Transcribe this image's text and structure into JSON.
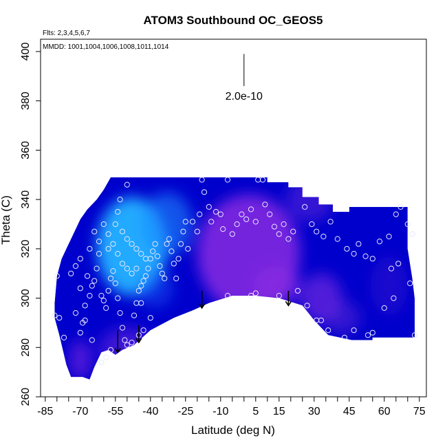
{
  "chart_data": {
    "type": "scatter",
    "title": "ATOM3 Southbound OC_GEOS5",
    "subtitle_flights": "Flts: 2,3,4,5,6,7",
    "subtitle_dates": "MMDD: 1001,1004,1006,1008,1011,1014",
    "xlabel": "Latitude (deg N)",
    "ylabel": "Theta (C)",
    "scale_label": "2.0e-10",
    "xlim": [
      -87,
      78
    ],
    "ylim": [
      260,
      405
    ],
    "xticks": [
      -85,
      -70,
      -55,
      -40,
      -25,
      -10,
      5,
      15,
      30,
      45,
      60,
      75
    ],
    "yticks": [
      260,
      280,
      300,
      320,
      340,
      360,
      380,
      400
    ],
    "colors": {
      "background": "#ffffff",
      "low": "#0000cc",
      "mid_purple": "#8a2be2",
      "high_cyan": "#1aa6ff",
      "marker": "#e8e8ff",
      "arrow": "#000000"
    },
    "field": {
      "boundary": [
        [
          -80,
          309
        ],
        [
          -78,
          316
        ],
        [
          -76,
          320
        ],
        [
          -74,
          324
        ],
        [
          -72,
          328
        ],
        [
          -70,
          332
        ],
        [
          -67,
          336
        ],
        [
          -63,
          340
        ],
        [
          -60,
          344
        ],
        [
          -57,
          349
        ],
        [
          10,
          349
        ],
        [
          10,
          347
        ],
        [
          19,
          347
        ],
        [
          19,
          345
        ],
        [
          25,
          345
        ],
        [
          25,
          341
        ],
        [
          32,
          341
        ],
        [
          32,
          338
        ],
        [
          38,
          338
        ],
        [
          38,
          335
        ],
        [
          45,
          335
        ],
        [
          45,
          337
        ],
        [
          55,
          337
        ],
        [
          55,
          337
        ],
        [
          70,
          337
        ],
        [
          70,
          320
        ],
        [
          72,
          308
        ],
        [
          73,
          300
        ],
        [
          73,
          284
        ],
        [
          55,
          284
        ],
        [
          55,
          283
        ],
        [
          46,
          283
        ],
        [
          36,
          285
        ],
        [
          30,
          291
        ],
        [
          25,
          297
        ],
        [
          15,
          300
        ],
        [
          5,
          301
        ],
        [
          -5,
          301
        ],
        [
          -15,
          298
        ],
        [
          -22,
          295
        ],
        [
          -30,
          292
        ],
        [
          -40,
          287
        ],
        [
          -47,
          281
        ],
        [
          -52,
          279
        ],
        [
          -55,
          277
        ],
        [
          -58,
          279
        ],
        [
          -61,
          278
        ],
        [
          -64,
          272
        ],
        [
          -66,
          267
        ],
        [
          -69,
          268
        ],
        [
          -74,
          268
        ],
        [
          -76,
          273
        ],
        [
          -79,
          285
        ],
        [
          -81,
          292
        ],
        [
          -81,
          298
        ]
      ],
      "hotspots": [
        {
          "lat": -48,
          "theta": 321,
          "value": 1.0,
          "color": "#22aaff",
          "rx_deg": 15,
          "ry_theta": 20
        },
        {
          "lat": -33,
          "theta": 330,
          "value": 0.6,
          "color": "#1a8cff",
          "rx_deg": 11,
          "ry_theta": 13
        },
        {
          "lat": -38,
          "theta": 304,
          "value": 0.4,
          "color": "#1a66ff",
          "rx_deg": 8,
          "ry_theta": 8
        },
        {
          "lat": 2,
          "theta": 318,
          "value": 0.85,
          "color": "#8a2be2",
          "rx_deg": 22,
          "ry_theta": 24
        },
        {
          "lat": 14,
          "theta": 305,
          "value": 0.7,
          "color": "#8a2be2",
          "rx_deg": 10,
          "ry_theta": 8
        },
        {
          "lat": 33,
          "theta": 300,
          "value": 0.65,
          "color": "#7a2be0",
          "rx_deg": 9,
          "ry_theta": 10
        },
        {
          "lat": 28,
          "theta": 340,
          "value": 0.5,
          "color": "#6a2bdc",
          "rx_deg": 10,
          "ry_theta": 9
        },
        {
          "lat": 42,
          "theta": 292,
          "value": 0.45,
          "color": "#6a2ad8",
          "rx_deg": 8,
          "ry_theta": 7
        },
        {
          "lat": -50,
          "theta": 280,
          "value": 0.5,
          "color": "#7a2be0",
          "rx_deg": 12,
          "ry_theta": 8
        },
        {
          "lat": -70,
          "theta": 275,
          "value": 0.55,
          "color": "#8a2be2",
          "rx_deg": 5,
          "ry_theta": 8
        },
        {
          "lat": 62,
          "theta": 305,
          "value": 0.35,
          "color": "#4a20d0",
          "rx_deg": 8,
          "ry_theta": 12
        }
      ]
    },
    "points": [
      [
        -80,
        309
      ],
      [
        -81,
        293
      ],
      [
        -79,
        292
      ],
      [
        -77,
        284
      ],
      [
        -74,
        310
      ],
      [
        -72,
        294
      ],
      [
        -70,
        304
      ],
      [
        -69,
        290
      ],
      [
        -68,
        297
      ],
      [
        -67,
        309
      ],
      [
        -66,
        301
      ],
      [
        -65,
        305
      ],
      [
        -64,
        307
      ],
      [
        -63,
        312
      ],
      [
        -62,
        323
      ],
      [
        -61,
        301
      ],
      [
        -60,
        299
      ],
      [
        -59,
        296
      ],
      [
        -58,
        303
      ],
      [
        -57,
        308
      ],
      [
        -56,
        311
      ],
      [
        -55,
        306
      ],
      [
        -54,
        300
      ],
      [
        -53,
        294
      ],
      [
        -52,
        288
      ],
      [
        -51,
        283
      ],
      [
        -50,
        281
      ],
      [
        -48,
        282
      ],
      [
        -47,
        293
      ],
      [
        -46,
        298
      ],
      [
        -45,
        303
      ],
      [
        -44,
        305
      ],
      [
        -43,
        307
      ],
      [
        -42,
        309
      ],
      [
        -41,
        312
      ],
      [
        -40,
        316
      ],
      [
        -39,
        319
      ],
      [
        -38,
        322
      ],
      [
        -37,
        317
      ],
      [
        -36,
        313
      ],
      [
        -35,
        310
      ],
      [
        -34,
        308
      ],
      [
        -33,
        322
      ],
      [
        -32,
        324
      ],
      [
        -31,
        319
      ],
      [
        -30,
        314
      ],
      [
        -29,
        308
      ],
      [
        -28,
        316
      ],
      [
        -27,
        322
      ],
      [
        -26,
        327
      ],
      [
        -25,
        331
      ],
      [
        -24,
        320
      ],
      [
        -22,
        331
      ],
      [
        -20,
        327
      ],
      [
        -19,
        334
      ],
      [
        -18,
        348
      ],
      [
        -17,
        343
      ],
      [
        -15,
        337
      ],
      [
        -14,
        331
      ],
      [
        -12,
        335
      ],
      [
        -10,
        334
      ],
      [
        -9,
        328
      ],
      [
        -7,
        348
      ],
      [
        -5,
        326
      ],
      [
        -3,
        330
      ],
      [
        -1,
        334
      ],
      [
        1,
        332
      ],
      [
        3,
        336
      ],
      [
        5,
        331
      ],
      [
        6,
        348
      ],
      [
        8,
        348
      ],
      [
        9,
        338
      ],
      [
        11,
        334
      ],
      [
        13,
        329
      ],
      [
        15,
        326
      ],
      [
        17,
        330
      ],
      [
        19,
        324
      ],
      [
        21,
        327
      ],
      [
        -55,
        330
      ],
      [
        -52,
        327
      ],
      [
        -50,
        324
      ],
      [
        -48,
        322
      ],
      [
        -46,
        320
      ],
      [
        -44,
        318
      ],
      [
        -42,
        316
      ],
      [
        -60,
        330
      ],
      [
        -58,
        326
      ],
      [
        -56,
        322
      ],
      [
        -54,
        318
      ],
      [
        -52,
        314
      ],
      [
        -50,
        312
      ],
      [
        -48,
        310
      ],
      [
        -62,
        318
      ],
      [
        -66,
        320
      ],
      [
        -70,
        316
      ],
      [
        -72,
        313
      ],
      [
        -64,
        327
      ],
      [
        -58,
        320
      ],
      [
        -54,
        335
      ],
      [
        -53,
        340
      ],
      [
        -50,
        346
      ],
      [
        -46,
        312
      ],
      [
        -44,
        298
      ],
      [
        -40,
        292
      ],
      [
        -43,
        287
      ],
      [
        -45,
        285
      ],
      [
        -57,
        279
      ],
      [
        -59,
        276
      ],
      [
        -61,
        274
      ],
      [
        -65,
        283
      ],
      [
        -68,
        291
      ],
      [
        -70,
        286
      ],
      [
        -7,
        301
      ],
      [
        3,
        301
      ],
      [
        5,
        302
      ],
      [
        15,
        301
      ],
      [
        23,
        303
      ],
      [
        27,
        297
      ],
      [
        31,
        291
      ],
      [
        33,
        291
      ],
      [
        36,
        287
      ],
      [
        43,
        284
      ],
      [
        47,
        287
      ],
      [
        53,
        285
      ],
      [
        55,
        286
      ],
      [
        60,
        296
      ],
      [
        64,
        300
      ],
      [
        26,
        337
      ],
      [
        29,
        330
      ],
      [
        31,
        327
      ],
      [
        34,
        325
      ],
      [
        37,
        331
      ],
      [
        40,
        324
      ],
      [
        44,
        320
      ],
      [
        47,
        318
      ],
      [
        49,
        322
      ],
      [
        52,
        317
      ],
      [
        55,
        316
      ],
      [
        58,
        323
      ],
      [
        62,
        325
      ],
      [
        63,
        312
      ],
      [
        65,
        334
      ],
      [
        67,
        337
      ],
      [
        70,
        330
      ],
      [
        72,
        326
      ],
      [
        66,
        314
      ],
      [
        71,
        306
      ],
      [
        73,
        285
      ]
    ],
    "arrows": [
      {
        "lat": -54,
        "theta_top": 287,
        "theta_bottom": 278
      },
      {
        "lat": -45,
        "theta_top": 289,
        "theta_bottom": 282
      },
      {
        "lat": -18,
        "theta_top": 303,
        "theta_bottom": 296
      },
      {
        "lat": 19,
        "theta_top": 303,
        "theta_bottom": 297
      }
    ],
    "scale_bar": {
      "lat": 0,
      "theta_top": 399,
      "theta_bottom": 386
    }
  }
}
